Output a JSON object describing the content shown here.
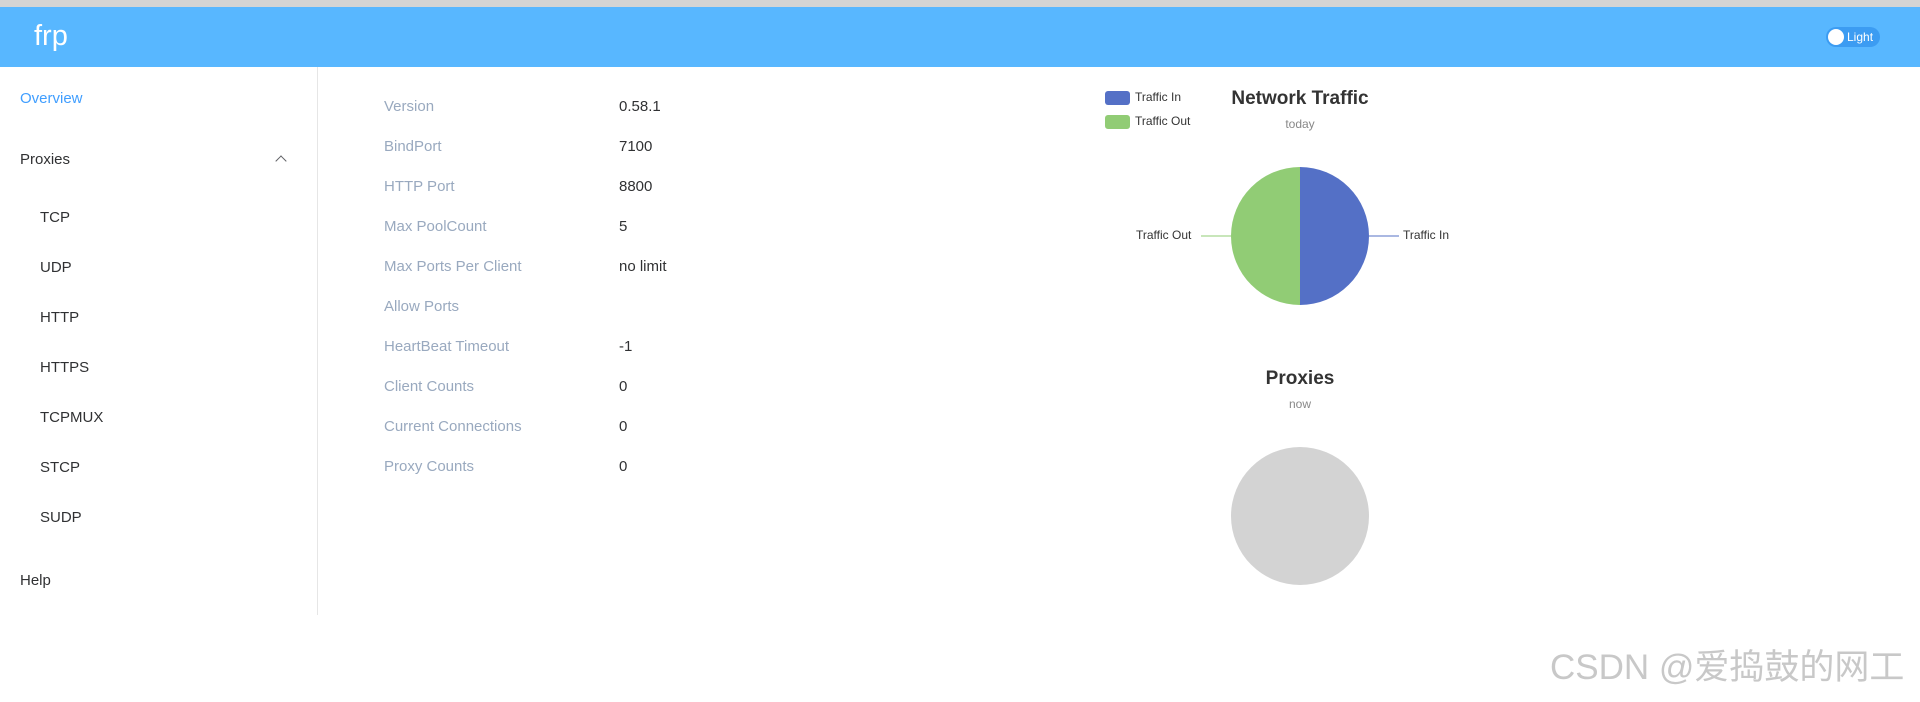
{
  "header": {
    "logo": "frp",
    "theme_toggle_label": "Light"
  },
  "sidebar": {
    "overview": "Overview",
    "proxies": "Proxies",
    "proxy_types": [
      "TCP",
      "UDP",
      "HTTP",
      "HTTPS",
      "TCPMUX",
      "STCP",
      "SUDP"
    ],
    "help": "Help"
  },
  "server_info": [
    {
      "label": "Version",
      "value": "0.58.1"
    },
    {
      "label": "BindPort",
      "value": "7100"
    },
    {
      "label": "HTTP Port",
      "value": "8800"
    },
    {
      "label": "Max PoolCount",
      "value": "5"
    },
    {
      "label": "Max Ports Per Client",
      "value": "no limit"
    },
    {
      "label": "Allow Ports",
      "value": ""
    },
    {
      "label": "HeartBeat Timeout",
      "value": "-1"
    },
    {
      "label": "Client Counts",
      "value": "0"
    },
    {
      "label": "Current Connections",
      "value": "0"
    },
    {
      "label": "Proxy Counts",
      "value": "0"
    }
  ],
  "colors": {
    "header": "#58b7ff",
    "active_menu": "#409eff",
    "traffic_in": "#5470c6",
    "traffic_out": "#91cc75",
    "empty_pie": "#d3d3d3"
  },
  "chart_data": [
    {
      "type": "pie",
      "title": "Network Traffic",
      "subtitle": "today",
      "legend": [
        "Traffic In",
        "Traffic Out"
      ],
      "legend_position": "top-left",
      "slices": [
        {
          "name": "Traffic In",
          "value": 50
        },
        {
          "name": "Traffic Out",
          "value": 50
        }
      ]
    },
    {
      "type": "pie",
      "title": "Proxies",
      "subtitle": "now",
      "slices": []
    }
  ],
  "watermark": "CSDN @爱捣鼓的网工"
}
